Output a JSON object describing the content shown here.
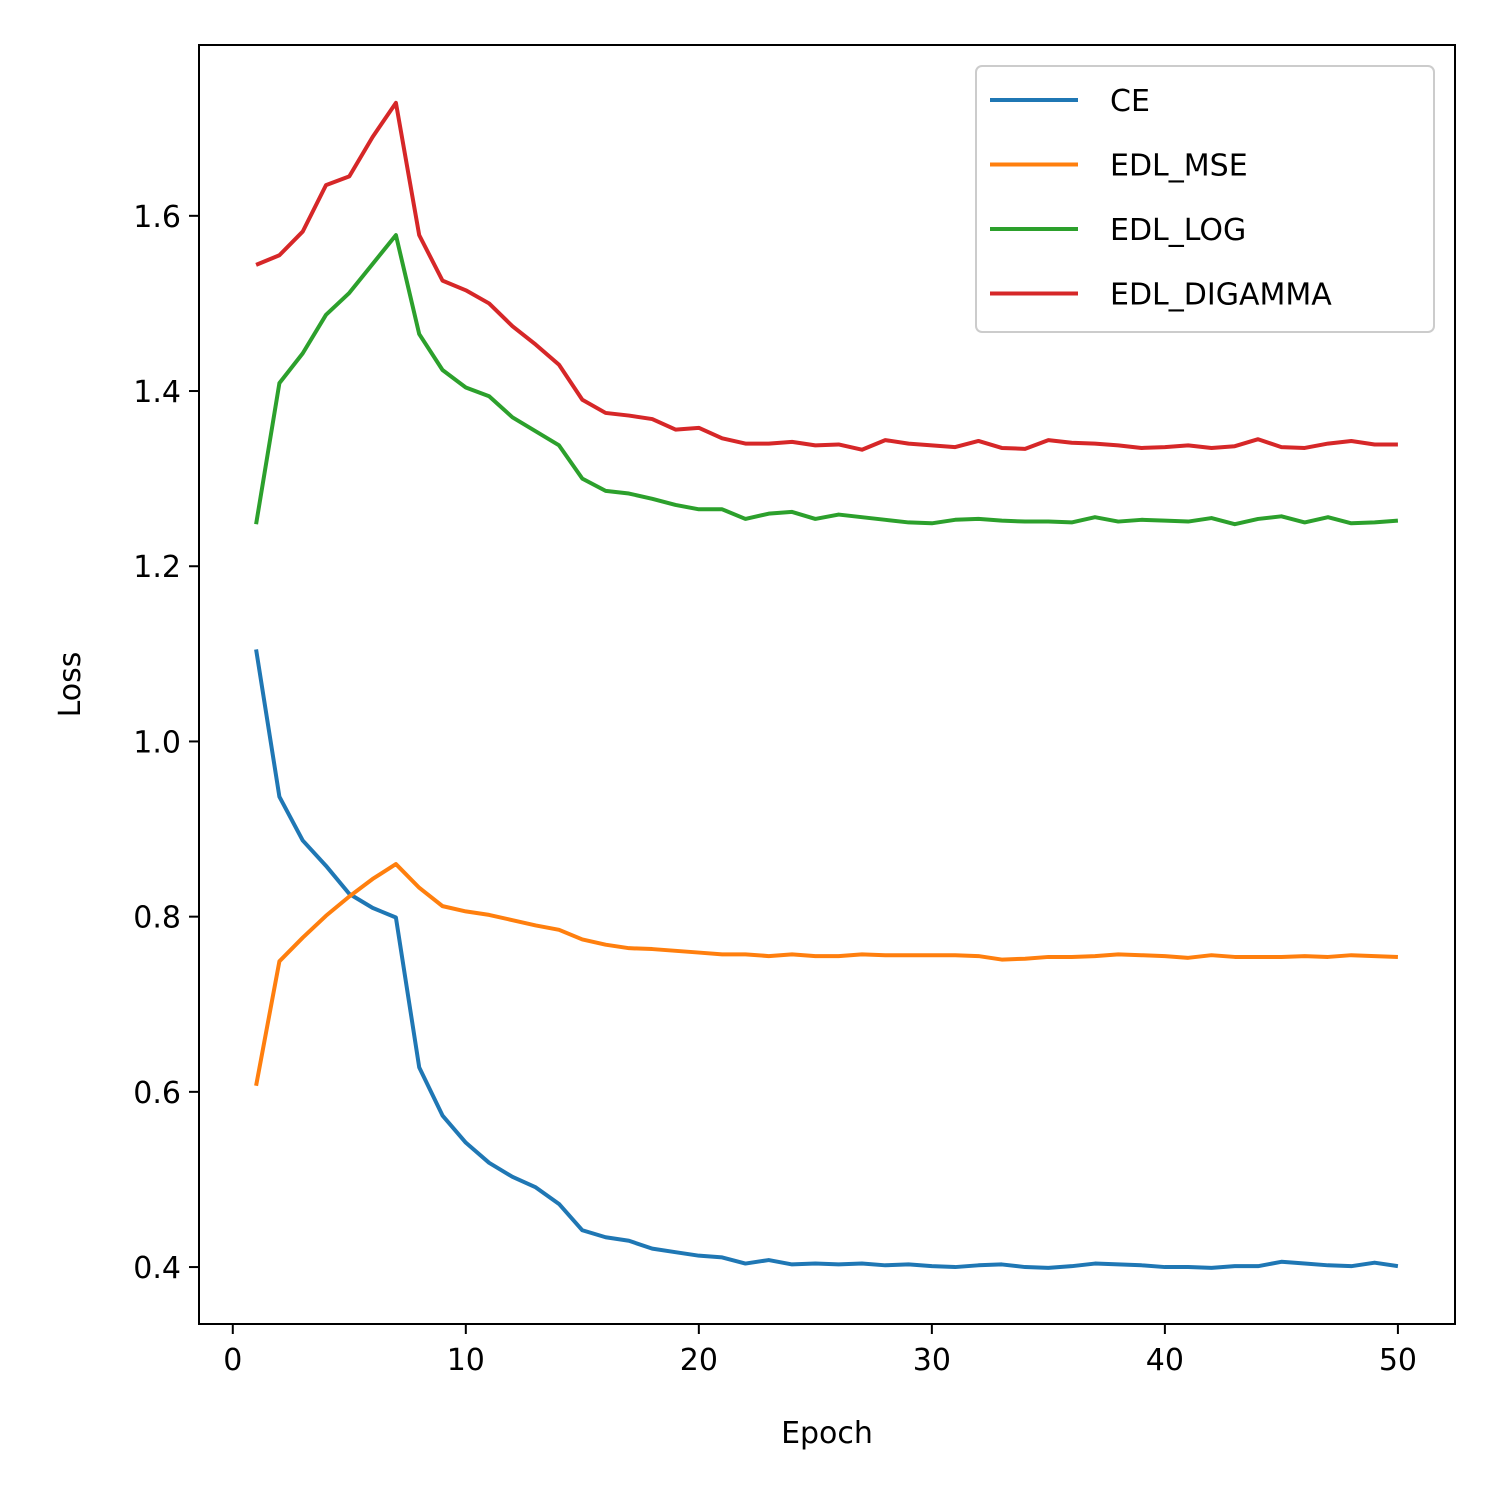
{
  "chart_data": {
    "type": "line",
    "title": "",
    "xlabel": "Epoch",
    "ylabel": "Loss",
    "xlim": [
      -1.45,
      52.45
    ],
    "ylim": [
      0.335,
      1.795
    ],
    "xticks": [
      0,
      10,
      20,
      30,
      40,
      50
    ],
    "yticks": [
      0.4,
      0.6,
      0.8,
      1.0,
      1.2,
      1.4,
      1.6
    ],
    "xtick_labels": [
      "0",
      "10",
      "20",
      "30",
      "40",
      "50"
    ],
    "ytick_labels": [
      "0.4",
      "0.6",
      "0.8",
      "1.0",
      "1.2",
      "1.4",
      "1.6"
    ],
    "grid": false,
    "legend_position": "top-right",
    "x": [
      1,
      2,
      3,
      4,
      5,
      6,
      7,
      8,
      9,
      10,
      11,
      12,
      13,
      14,
      15,
      16,
      17,
      18,
      19,
      20,
      21,
      22,
      23,
      24,
      25,
      26,
      27,
      28,
      29,
      30,
      31,
      32,
      33,
      34,
      35,
      36,
      37,
      38,
      39,
      40,
      41,
      42,
      43,
      44,
      45,
      46,
      47,
      48,
      49,
      50
    ],
    "series": [
      {
        "name": "CE",
        "color": "#1f77b4",
        "values": [
          1.105,
          0.937,
          0.887,
          0.858,
          0.826,
          0.81,
          0.799,
          0.628,
          0.573,
          0.542,
          0.519,
          0.503,
          0.491,
          0.472,
          0.442,
          0.434,
          0.43,
          0.421,
          0.417,
          0.413,
          0.411,
          0.404,
          0.408,
          0.403,
          0.404,
          0.403,
          0.404,
          0.402,
          0.403,
          0.401,
          0.4,
          0.402,
          0.403,
          0.4,
          0.399,
          0.401,
          0.404,
          0.403,
          0.402,
          0.4,
          0.4,
          0.399,
          0.401,
          0.401,
          0.406,
          0.404,
          0.402,
          0.401,
          0.405,
          0.401
        ]
      },
      {
        "name": "EDL_MSE",
        "color": "#ff7f0e",
        "values": [
          0.607,
          0.749,
          0.776,
          0.801,
          0.823,
          0.843,
          0.86,
          0.833,
          0.812,
          0.806,
          0.802,
          0.796,
          0.79,
          0.785,
          0.774,
          0.768,
          0.764,
          0.763,
          0.761,
          0.759,
          0.757,
          0.757,
          0.755,
          0.757,
          0.755,
          0.755,
          0.757,
          0.756,
          0.756,
          0.756,
          0.756,
          0.755,
          0.751,
          0.752,
          0.754,
          0.754,
          0.755,
          0.757,
          0.756,
          0.755,
          0.753,
          0.756,
          0.754,
          0.754,
          0.754,
          0.755,
          0.754,
          0.756,
          0.755,
          0.754
        ]
      },
      {
        "name": "EDL_LOG",
        "color": "#2ca02c",
        "values": [
          1.248,
          1.409,
          1.443,
          1.487,
          1.512,
          1.545,
          1.578,
          1.465,
          1.424,
          1.404,
          1.394,
          1.37,
          1.354,
          1.338,
          1.3,
          1.286,
          1.283,
          1.277,
          1.27,
          1.265,
          1.265,
          1.254,
          1.26,
          1.262,
          1.254,
          1.259,
          1.256,
          1.253,
          1.25,
          1.249,
          1.253,
          1.254,
          1.252,
          1.251,
          1.251,
          1.25,
          1.256,
          1.251,
          1.253,
          1.252,
          1.251,
          1.255,
          1.248,
          1.254,
          1.257,
          1.25,
          1.256,
          1.249,
          1.25,
          1.252
        ]
      },
      {
        "name": "EDL_DIGAMMA",
        "color": "#d62728",
        "values": [
          1.544,
          1.555,
          1.582,
          1.635,
          1.645,
          1.69,
          1.729,
          1.578,
          1.526,
          1.515,
          1.5,
          1.474,
          1.453,
          1.43,
          1.39,
          1.375,
          1.372,
          1.368,
          1.356,
          1.358,
          1.346,
          1.34,
          1.34,
          1.342,
          1.338,
          1.339,
          1.333,
          1.344,
          1.34,
          1.338,
          1.336,
          1.343,
          1.335,
          1.334,
          1.344,
          1.341,
          1.34,
          1.338,
          1.335,
          1.336,
          1.338,
          1.335,
          1.337,
          1.345,
          1.336,
          1.335,
          1.34,
          1.343,
          1.339,
          1.339
        ]
      }
    ]
  }
}
